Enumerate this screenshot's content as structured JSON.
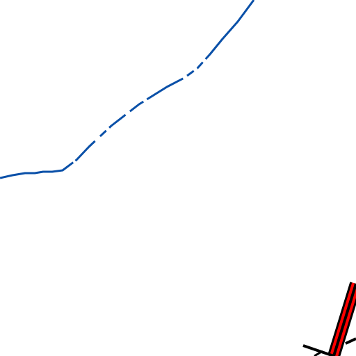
{
  "map": {
    "background_color": "#ffffff",
    "layers": [
      {
        "name": "boundary-line",
        "kind": "dashed boundary",
        "color": "#0a50a8"
      },
      {
        "name": "railway-casing",
        "kind": "road/rail casing",
        "color": "#000000"
      },
      {
        "name": "railway-fill",
        "kind": "road/rail fill",
        "color": "#ff0000"
      }
    ],
    "labels": []
  }
}
